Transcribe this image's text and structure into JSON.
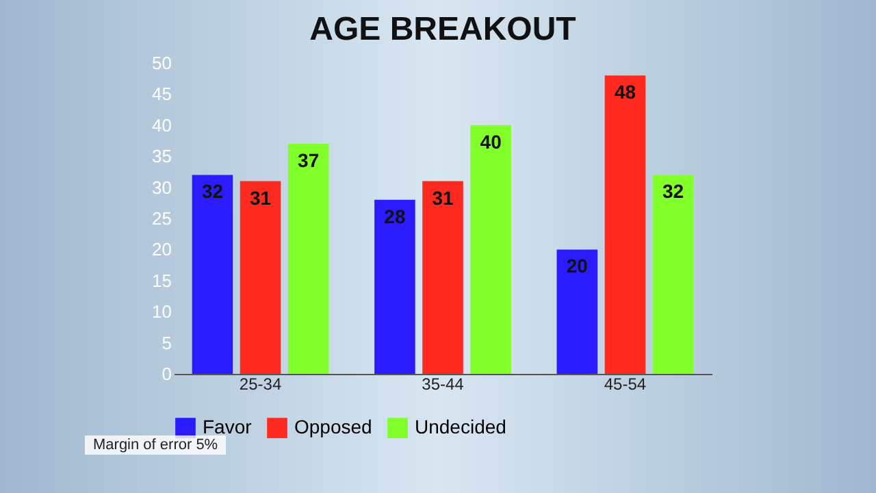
{
  "chart_data": {
    "type": "bar",
    "title": "AGE BREAKOUT",
    "categories": [
      "25-34",
      "35-44",
      "45-54"
    ],
    "series": [
      {
        "name": "Favor",
        "color": "#2b1cff",
        "values": [
          32,
          28,
          20
        ]
      },
      {
        "name": "Opposed",
        "color": "#ff2a1f",
        "values": [
          31,
          31,
          48
        ]
      },
      {
        "name": "Undecided",
        "color": "#80ff2a",
        "values": [
          37,
          40,
          32
        ]
      }
    ],
    "ylim": [
      0,
      50
    ],
    "yticks": [
      0,
      5,
      10,
      15,
      20,
      25,
      30,
      35,
      40,
      45,
      50
    ],
    "grid": false,
    "legend": "bottom",
    "data_labels": true,
    "annotations": [
      "Margin of error 5%"
    ]
  }
}
